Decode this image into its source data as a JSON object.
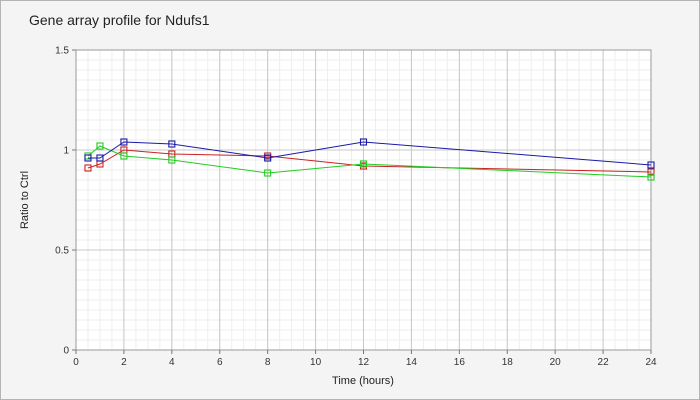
{
  "chart_data": {
    "type": "line",
    "title": "Gene array profile for Ndufs1",
    "xlabel": "Time (hours)",
    "ylabel": "Ratio to Ctrl",
    "xlim": [
      0,
      24
    ],
    "ylim": [
      0,
      1.5
    ],
    "x_ticks": [
      "0",
      "2",
      "4",
      "6",
      "8",
      "10",
      "12",
      "14",
      "16",
      "18",
      "20",
      "22",
      "24"
    ],
    "y_ticks": [
      "0",
      "0.5",
      "1",
      "1.5"
    ],
    "grid": true,
    "legend": "none",
    "marker": "square",
    "series": [
      {
        "color": "#cc2222",
        "x": [
          0.5,
          1,
          2,
          4,
          8,
          12,
          24
        ],
        "y": [
          0.91,
          0.93,
          1.0,
          0.98,
          0.97,
          0.92,
          0.89
        ]
      },
      {
        "color": "#22cc22",
        "x": [
          0.5,
          1,
          2,
          4,
          8,
          12,
          24
        ],
        "y": [
          0.97,
          1.02,
          0.97,
          0.95,
          0.885,
          0.93,
          0.865
        ]
      },
      {
        "color": "#1a1aa6",
        "x": [
          0.5,
          1,
          2,
          4,
          8,
          12,
          24
        ],
        "y": [
          0.96,
          0.96,
          1.04,
          1.03,
          0.96,
          1.04,
          0.925
        ]
      }
    ]
  }
}
